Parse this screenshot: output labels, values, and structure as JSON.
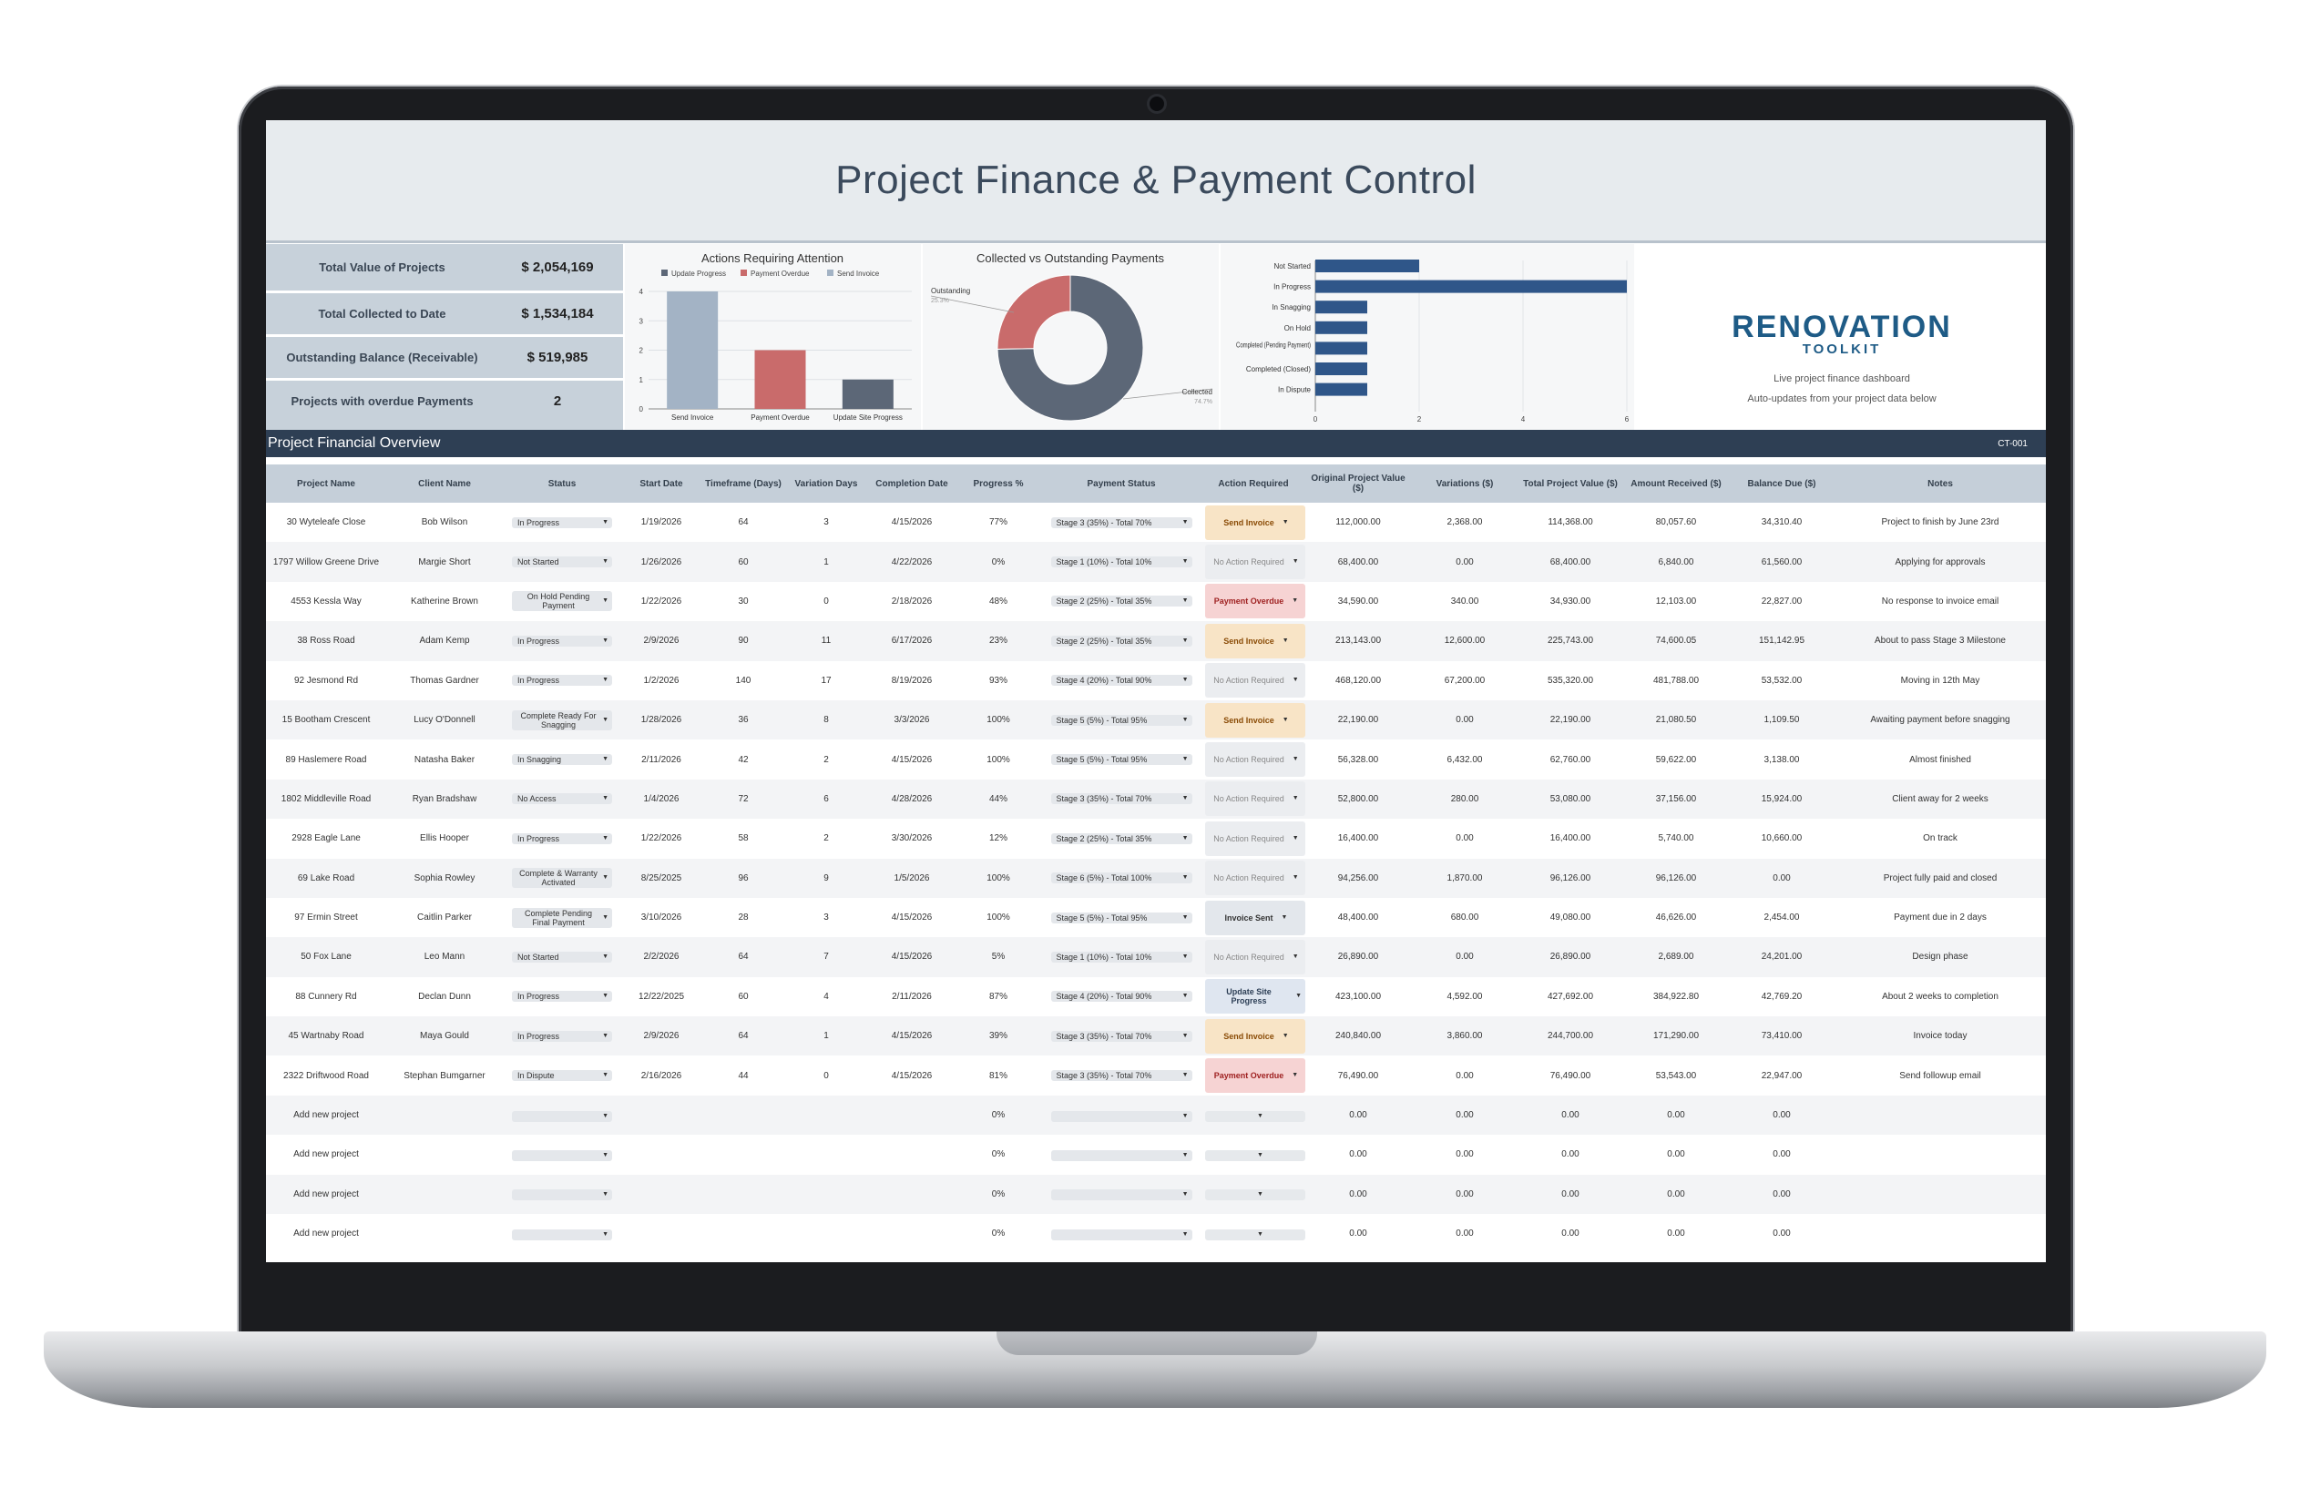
{
  "header": {
    "title": "Project Finance & Payment Control"
  },
  "kpis": [
    {
      "label": "Total Value of Projects",
      "value": "$ 2,054,169"
    },
    {
      "label": "Total Collected to Date",
      "value": "$ 1,534,184"
    },
    {
      "label": "Outstanding Balance (Receivable)",
      "value": "$ 519,985"
    },
    {
      "label": "Projects with overdue Payments",
      "value": "2"
    }
  ],
  "charts": {
    "actions": {
      "type": "bar",
      "title": "Actions Requiring Attention",
      "legend": [
        "Update Progress",
        "Payment Overdue",
        "Send Invoice"
      ],
      "categories": [
        "Send Invoice",
        "Payment Overdue",
        "Update Site Progress"
      ],
      "values": [
        4,
        2,
        1
      ],
      "colors": [
        "#a3b3c5",
        "#c96b6b",
        "#5c6777"
      ],
      "y_ticks": [
        "0",
        "1",
        "2",
        "3",
        "4"
      ],
      "ylim": [
        0,
        4
      ]
    },
    "collected": {
      "type": "pie",
      "title": "Collected vs Outstanding Payments",
      "labels": [
        "Outstanding",
        "Collected"
      ],
      "percents": [
        "25.3%",
        "74.7%"
      ],
      "values": [
        25.3,
        74.7
      ],
      "colors": [
        "#c96b6b",
        "#5c6777"
      ]
    },
    "status": {
      "type": "bar",
      "orientation": "horizontal",
      "categories": [
        "Not Started",
        "In Progress",
        "In Snagging",
        "On Hold",
        "Completed (Pending Payment)",
        "Completed (Closed)",
        "In Dispute"
      ],
      "values": [
        2,
        6,
        1,
        1,
        1,
        1,
        1
      ],
      "x_ticks": [
        "0",
        "2",
        "4",
        "6"
      ],
      "xlim": [
        0,
        6
      ],
      "color": "#2f5689"
    }
  },
  "brand": {
    "word": "RENOVATION",
    "sub": "TOOLKIT",
    "tagline": "Live project finance dashboard",
    "note": "Auto-updates from your project data below"
  },
  "section": {
    "title": "Project Financial Overview",
    "code": "CT-001"
  },
  "columns": [
    "Project Name",
    "Client Name",
    "Status",
    "Start Date",
    "Timeframe (Days)",
    "Variation Days",
    "Completion Date",
    "Progress %",
    "Payment Status",
    "Action Required",
    "Original Project Value ($)",
    "Variations ($)",
    "Total Project Value ($)",
    "Amount Received ($)",
    "Balance Due ($)",
    "Notes"
  ],
  "rows": [
    {
      "project": "30 Wyteleafe Close",
      "client": "Bob Wilson",
      "status": "In Progress",
      "start": "1/19/2026",
      "timeframe": "64",
      "variation_days": "3",
      "completion": "4/15/2026",
      "progress": "77%",
      "payment": "Stage 3 (35%) - Total 70%",
      "action": "Send Invoice",
      "action_kind": "send",
      "original": "112,000.00",
      "variations": "2,368.00",
      "total": "114,368.00",
      "received": "80,057.60",
      "balance": "34,310.40",
      "notes": "Project to finish by June 23rd"
    },
    {
      "project": "1797 Willow Greene Drive",
      "client": "Margie Short",
      "status": "Not Started",
      "start": "1/26/2026",
      "timeframe": "60",
      "variation_days": "1",
      "completion": "4/22/2026",
      "progress": "0%",
      "payment": "Stage 1 (10%) - Total 10%",
      "action": "No Action Required",
      "action_kind": "none",
      "original": "68,400.00",
      "variations": "0.00",
      "total": "68,400.00",
      "received": "6,840.00",
      "balance": "61,560.00",
      "notes": "Applying for approvals"
    },
    {
      "project": "4553 Kessla Way",
      "client": "Katherine Brown",
      "status": "On Hold Pending Payment",
      "start": "1/22/2026",
      "timeframe": "30",
      "variation_days": "0",
      "completion": "2/18/2026",
      "progress": "48%",
      "payment": "Stage 2 (25%) - Total 35%",
      "action": "Payment Overdue",
      "action_kind": "overdue",
      "original": "34,590.00",
      "variations": "340.00",
      "total": "34,930.00",
      "received": "12,103.00",
      "balance": "22,827.00",
      "notes": "No response to invoice email"
    },
    {
      "project": "38 Ross Road",
      "client": "Adam Kemp",
      "status": "In Progress",
      "start": "2/9/2026",
      "timeframe": "90",
      "variation_days": "11",
      "completion": "6/17/2026",
      "progress": "23%",
      "payment": "Stage 2 (25%) - Total 35%",
      "action": "Send Invoice",
      "action_kind": "send",
      "original": "213,143.00",
      "variations": "12,600.00",
      "total": "225,743.00",
      "received": "74,600.05",
      "balance": "151,142.95",
      "notes": "About to pass Stage 3 Milestone"
    },
    {
      "project": "92 Jesmond Rd",
      "client": "Thomas Gardner",
      "status": "In Progress",
      "start": "1/2/2026",
      "timeframe": "140",
      "variation_days": "17",
      "completion": "8/19/2026",
      "progress": "93%",
      "payment": "Stage 4 (20%) - Total 90%",
      "action": "No Action Required",
      "action_kind": "none",
      "original": "468,120.00",
      "variations": "67,200.00",
      "total": "535,320.00",
      "received": "481,788.00",
      "balance": "53,532.00",
      "notes": "Moving in 12th May"
    },
    {
      "project": "15 Bootham Crescent",
      "client": "Lucy O'Donnell",
      "status": "Complete Ready For Snagging",
      "start": "1/28/2026",
      "timeframe": "36",
      "variation_days": "8",
      "completion": "3/3/2026",
      "progress": "100%",
      "payment": "Stage 5 (5%) - Total 95%",
      "action": "Send Invoice",
      "action_kind": "send",
      "original": "22,190.00",
      "variations": "0.00",
      "total": "22,190.00",
      "received": "21,080.50",
      "balance": "1,109.50",
      "notes": "Awaiting payment before snagging"
    },
    {
      "project": "89 Haslemere Road",
      "client": "Natasha Baker",
      "status": "In Snagging",
      "start": "2/11/2026",
      "timeframe": "42",
      "variation_days": "2",
      "completion": "4/15/2026",
      "progress": "100%",
      "payment": "Stage 5 (5%) - Total 95%",
      "action": "No Action Required",
      "action_kind": "none",
      "original": "56,328.00",
      "variations": "6,432.00",
      "total": "62,760.00",
      "received": "59,622.00",
      "balance": "3,138.00",
      "notes": "Almost finished"
    },
    {
      "project": "1802 Middleville Road",
      "client": "Ryan Bradshaw",
      "status": "No Access",
      "start": "1/4/2026",
      "timeframe": "72",
      "variation_days": "6",
      "completion": "4/28/2026",
      "progress": "44%",
      "payment": "Stage 3 (35%) - Total 70%",
      "action": "No Action Required",
      "action_kind": "none",
      "original": "52,800.00",
      "variations": "280.00",
      "total": "53,080.00",
      "received": "37,156.00",
      "balance": "15,924.00",
      "notes": "Client away for 2 weeks"
    },
    {
      "project": "2928 Eagle Lane",
      "client": "Ellis Hooper",
      "status": "In Progress",
      "start": "1/22/2026",
      "timeframe": "58",
      "variation_days": "2",
      "completion": "3/30/2026",
      "progress": "12%",
      "payment": "Stage 2 (25%) - Total 35%",
      "action": "No Action Required",
      "action_kind": "none",
      "original": "16,400.00",
      "variations": "0.00",
      "total": "16,400.00",
      "received": "5,740.00",
      "balance": "10,660.00",
      "notes": "On track"
    },
    {
      "project": "69 Lake Road",
      "client": "Sophia Rowley",
      "status": "Complete & Warranty Activated",
      "start": "8/25/2025",
      "timeframe": "96",
      "variation_days": "9",
      "completion": "1/5/2026",
      "progress": "100%",
      "payment": "Stage 6 (5%) - Total 100%",
      "action": "No Action Required",
      "action_kind": "none",
      "original": "94,256.00",
      "variations": "1,870.00",
      "total": "96,126.00",
      "received": "96,126.00",
      "balance": "0.00",
      "notes": "Project fully paid and closed"
    },
    {
      "project": "97 Ermin Street",
      "client": "Caitlin Parker",
      "status": "Complete Pending Final Payment",
      "start": "3/10/2026",
      "timeframe": "28",
      "variation_days": "3",
      "completion": "4/15/2026",
      "progress": "100%",
      "payment": "Stage 5 (5%) - Total 95%",
      "action": "Invoice Sent",
      "action_kind": "sent",
      "original": "48,400.00",
      "variations": "680.00",
      "total": "49,080.00",
      "received": "46,626.00",
      "balance": "2,454.00",
      "notes": "Payment due in 2 days"
    },
    {
      "project": "50 Fox Lane",
      "client": "Leo Mann",
      "status": "Not Started",
      "start": "2/2/2026",
      "timeframe": "64",
      "variation_days": "7",
      "completion": "4/15/2026",
      "progress": "5%",
      "payment": "Stage 1 (10%) - Total 10%",
      "action": "No Action Required",
      "action_kind": "none",
      "original": "26,890.00",
      "variations": "0.00",
      "total": "26,890.00",
      "received": "2,689.00",
      "balance": "24,201.00",
      "notes": "Design phase"
    },
    {
      "project": "88 Cunnery Rd",
      "client": "Declan Dunn",
      "status": "In Progress",
      "start": "12/22/2025",
      "timeframe": "60",
      "variation_days": "4",
      "completion": "2/11/2026",
      "progress": "87%",
      "payment": "Stage 4 (20%) - Total 90%",
      "action": "Update Site Progress",
      "action_kind": "update",
      "original": "423,100.00",
      "variations": "4,592.00",
      "total": "427,692.00",
      "received": "384,922.80",
      "balance": "42,769.20",
      "notes": "About 2 weeks to completion"
    },
    {
      "project": "45 Wartnaby Road",
      "client": "Maya Gould",
      "status": "In Progress",
      "start": "2/9/2026",
      "timeframe": "64",
      "variation_days": "1",
      "completion": "4/15/2026",
      "progress": "39%",
      "payment": "Stage 3 (35%) - Total 70%",
      "action": "Send Invoice",
      "action_kind": "send",
      "original": "240,840.00",
      "variations": "3,860.00",
      "total": "244,700.00",
      "received": "171,290.00",
      "balance": "73,410.00",
      "notes": "Invoice today"
    },
    {
      "project": "2322 Driftwood Road",
      "client": "Stephan Bumgarner",
      "status": "In Dispute",
      "start": "2/16/2026",
      "timeframe": "44",
      "variation_days": "0",
      "completion": "4/15/2026",
      "progress": "81%",
      "payment": "Stage 3 (35%) - Total 70%",
      "action": "Payment Overdue",
      "action_kind": "overdue",
      "original": "76,490.00",
      "variations": "0.00",
      "total": "76,490.00",
      "received": "53,543.00",
      "balance": "22,947.00",
      "notes": "Send followup email"
    },
    {
      "project": "Add new project",
      "client": "",
      "status": "",
      "start": "",
      "timeframe": "",
      "variation_days": "",
      "completion": "",
      "progress": "0%",
      "payment": "",
      "action": "",
      "action_kind": "empty",
      "original": "0.00",
      "variations": "0.00",
      "total": "0.00",
      "received": "0.00",
      "balance": "0.00",
      "notes": ""
    },
    {
      "project": "Add new project",
      "client": "",
      "status": "",
      "start": "",
      "timeframe": "",
      "variation_days": "",
      "completion": "",
      "progress": "0%",
      "payment": "",
      "action": "",
      "action_kind": "empty",
      "original": "0.00",
      "variations": "0.00",
      "total": "0.00",
      "received": "0.00",
      "balance": "0.00",
      "notes": ""
    },
    {
      "project": "Add new project",
      "client": "",
      "status": "",
      "start": "",
      "timeframe": "",
      "variation_days": "",
      "completion": "",
      "progress": "0%",
      "payment": "",
      "action": "",
      "action_kind": "empty",
      "original": "0.00",
      "variations": "0.00",
      "total": "0.00",
      "received": "0.00",
      "balance": "0.00",
      "notes": ""
    },
    {
      "project": "Add new project",
      "client": "",
      "status": "",
      "start": "",
      "timeframe": "",
      "variation_days": "",
      "completion": "",
      "progress": "0%",
      "payment": "",
      "action": "",
      "action_kind": "empty",
      "original": "0.00",
      "variations": "0.00",
      "total": "0.00",
      "received": "0.00",
      "balance": "0.00",
      "notes": ""
    }
  ]
}
